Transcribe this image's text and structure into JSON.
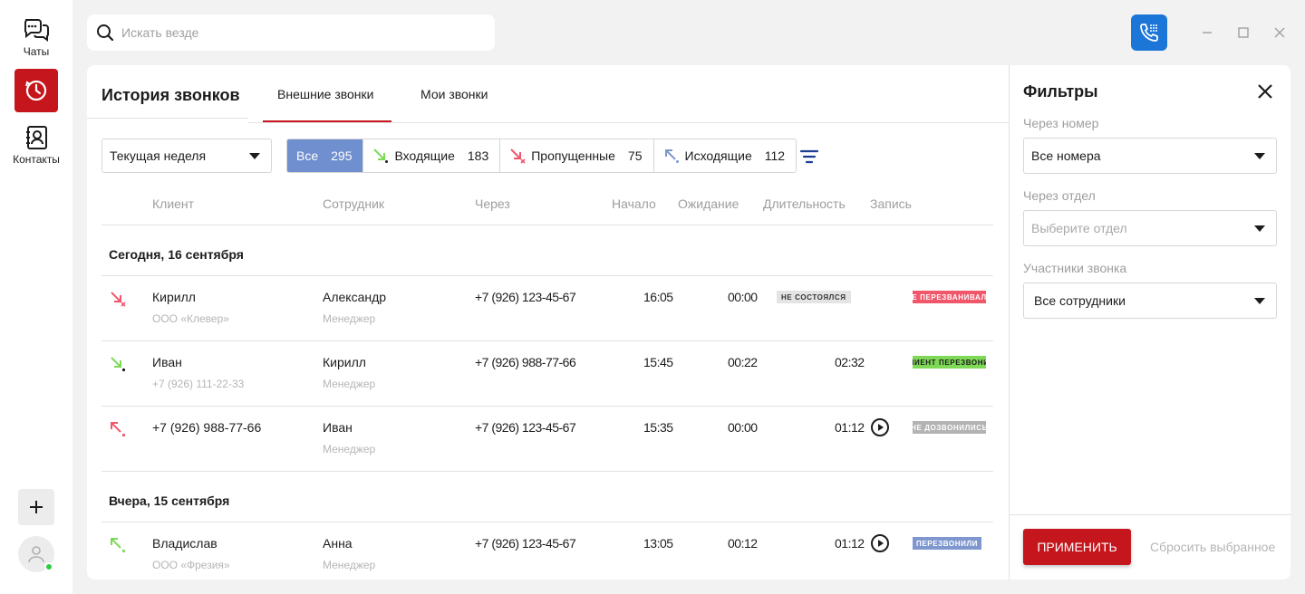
{
  "rail": {
    "chats_label": "Чаты",
    "contacts_label": "Контакты"
  },
  "search": {
    "placeholder": "Искать везде"
  },
  "header": {
    "title": "История звонков",
    "tabs": [
      {
        "label": "Внешние звонки",
        "active": true
      },
      {
        "label": "Мои звонки",
        "active": false
      }
    ]
  },
  "toolbar": {
    "period": "Текущая неделя",
    "segments": [
      {
        "label": "Все",
        "count": "295",
        "active": true
      },
      {
        "label": "Входящие",
        "count": "183",
        "icon": "incoming-call-icon"
      },
      {
        "label": "Пропущенные",
        "count": "75",
        "icon": "missed-call-icon"
      },
      {
        "label": "Исходящие",
        "count": "112",
        "icon": "outgoing-call-icon"
      }
    ]
  },
  "table": {
    "columns": [
      "Клиент",
      "Сотрудник",
      "Через",
      "Начало",
      "Ожидание",
      "Длительность",
      "Запись"
    ],
    "groups": [
      {
        "label": "Сегодня, 16 сентября",
        "rows": [
          {
            "dir": "missed",
            "client": "Кирилл",
            "client_sub": "ООО «Клевер»",
            "employee": "Александр",
            "employee_sub": "Менеджер",
            "via": "+7 (926) 123-45-67",
            "start": "16:05",
            "wait": "00:00",
            "status": "НЕ СОСТОЯЛСЯ",
            "duration": "",
            "record": false,
            "badge": "НЕ ПЕРЕЗВАНИВАЛИ",
            "badge_color": "#f0576b"
          },
          {
            "dir": "incoming",
            "client": "Иван",
            "client_sub": "+7 (926) 111-22-33",
            "employee": "Кирилл",
            "employee_sub": "Менеджер",
            "via": "+7 (926) 988-77-66",
            "start": "15:45",
            "wait": "00:22",
            "status": "",
            "duration": "02:32",
            "record": false,
            "badge": "КЛИЕНТ ПЕРЕЗВОНИЛ",
            "badge_color": "#7ed957"
          },
          {
            "dir": "outgoing-missed",
            "client": "+7 (926) 988-77-66",
            "client_sub": "",
            "employee": "Иван",
            "employee_sub": "Менеджер",
            "via": "+7 (926) 123-45-67",
            "start": "15:35",
            "wait": "00:00",
            "status": "",
            "duration": "01:12",
            "record": true,
            "badge": "НЕ ДОЗВОНИЛИСЬ",
            "badge_color": "#b3b3b3"
          }
        ]
      },
      {
        "label": "Вчера, 15 сентября",
        "rows": [
          {
            "dir": "outgoing",
            "client": "Владислав",
            "client_sub": "ООО «Фрезия»",
            "employee": "Анна",
            "employee_sub": "Менеджер",
            "via": "+7 (926) 123-45-67",
            "start": "13:05",
            "wait": "00:12",
            "status": "",
            "duration": "01:12",
            "record": true,
            "badge": "ПЕРЕЗВОНИЛИ",
            "badge_color": "#7f97cf"
          }
        ]
      }
    ]
  },
  "filters": {
    "title": "Фильтры",
    "number_label": "Через номер",
    "number_value": "Все номера",
    "dept_label": "Через отдел",
    "dept_placeholder": "Выберите отдел",
    "members_label": "Участники звонка",
    "members_value": "Все сотрудники",
    "apply": "ПРИМЕНИТЬ",
    "reset": "Сбросить выбранное"
  },
  "colors": {
    "accent_red": "#c4161c",
    "phone_blue": "#1b76d8",
    "segment_active": "#6f8fcf",
    "incoming_green": "#7ed957",
    "missed_red": "#f0576b",
    "outgoing_blue": "#7f97cf"
  }
}
